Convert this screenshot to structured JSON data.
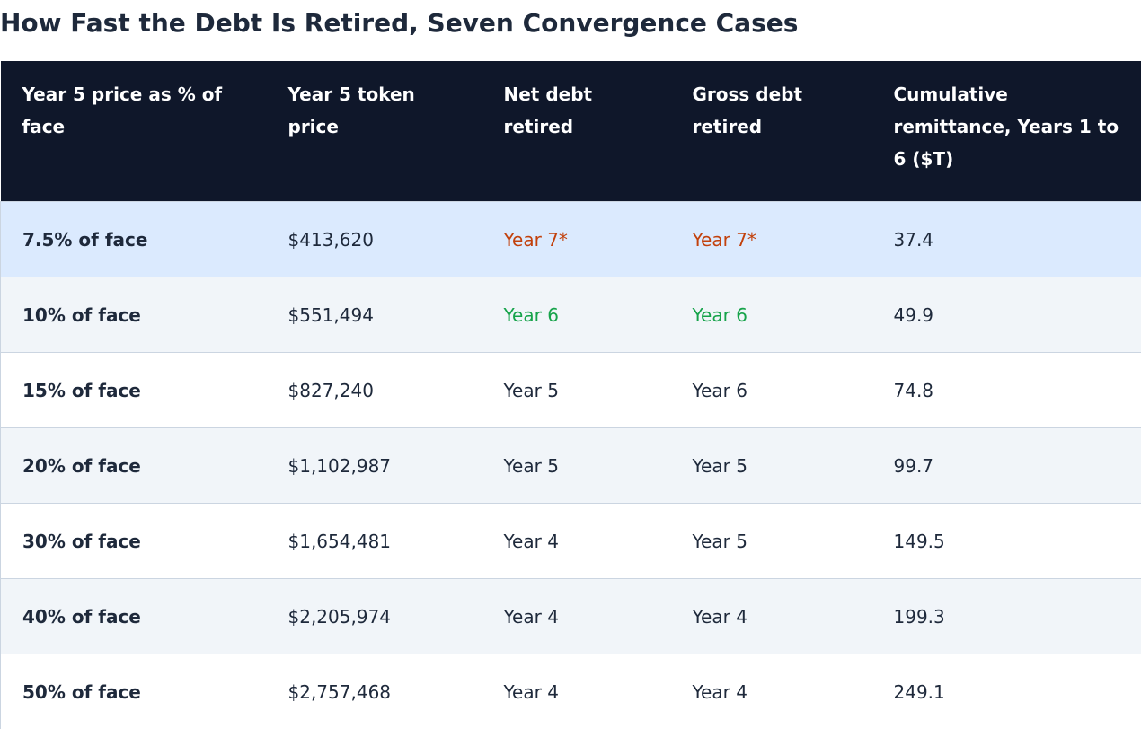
{
  "title": "How Fast the Debt Is Retired, Seven Convergence Cases",
  "colors": {
    "header_bg": "#0f172a",
    "highlight_row": "#dbeafe",
    "shaded_row": "#f1f5f9",
    "late_year": "#c2410c",
    "first_success_year": "#16a34a"
  },
  "table": {
    "headers": [
      "Year 5 price as % of face",
      "Year 5 token price",
      "Net debt retired",
      "Gross debt retired",
      "Cumulative remittance, Years 1 to 6 ($T)"
    ],
    "rows": [
      {
        "case": "7.5% of face",
        "price": "$413,620",
        "net": "Year 7*",
        "gross": "Year 7*",
        "cumulative": "37.4"
      },
      {
        "case": "10% of face",
        "price": "$551,494",
        "net": "Year 6",
        "gross": "Year 6",
        "cumulative": "49.9"
      },
      {
        "case": "15% of face",
        "price": "$827,240",
        "net": "Year 5",
        "gross": "Year 6",
        "cumulative": "74.8"
      },
      {
        "case": "20% of face",
        "price": "$1,102,987",
        "net": "Year 5",
        "gross": "Year 5",
        "cumulative": "99.7"
      },
      {
        "case": "30% of face",
        "price": "$1,654,481",
        "net": "Year 4",
        "gross": "Year 5",
        "cumulative": "149.5"
      },
      {
        "case": "40% of face",
        "price": "$2,205,974",
        "net": "Year 4",
        "gross": "Year 4",
        "cumulative": "199.3"
      },
      {
        "case": "50% of face",
        "price": "$2,757,468",
        "net": "Year 4",
        "gross": "Year 4",
        "cumulative": "249.1"
      }
    ]
  }
}
